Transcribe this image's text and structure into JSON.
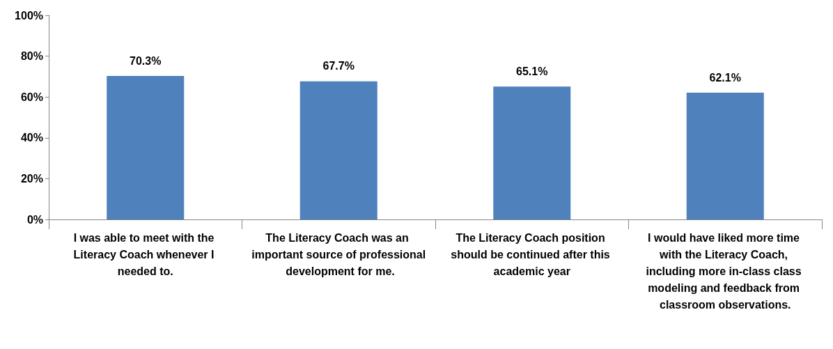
{
  "chart_data": {
    "type": "bar",
    "categories": [
      "I was able to meet with the Literacy Coach whenever I needed to.",
      "The Literacy Coach was an important source of professional development for me.",
      "The Literacy Coach position should be continued after this academic year",
      "I would have liked more time with the Literacy Coach, including more in-class class modeling and feedback from classroom observations."
    ],
    "values": [
      70.3,
      67.7,
      65.1,
      62.1
    ],
    "value_labels": [
      "70.3%",
      "67.7%",
      "65.1%",
      "62.1%"
    ],
    "color": "#4f81bd",
    "ylim": [
      0,
      100
    ],
    "yticks": [
      {
        "value": 0,
        "label": "0%"
      },
      {
        "value": 20,
        "label": "20%"
      },
      {
        "value": 40,
        "label": "40%"
      },
      {
        "value": 60,
        "label": "60%"
      },
      {
        "value": 80,
        "label": "80%"
      },
      {
        "value": 100,
        "label": "100%"
      }
    ],
    "grid": false
  }
}
